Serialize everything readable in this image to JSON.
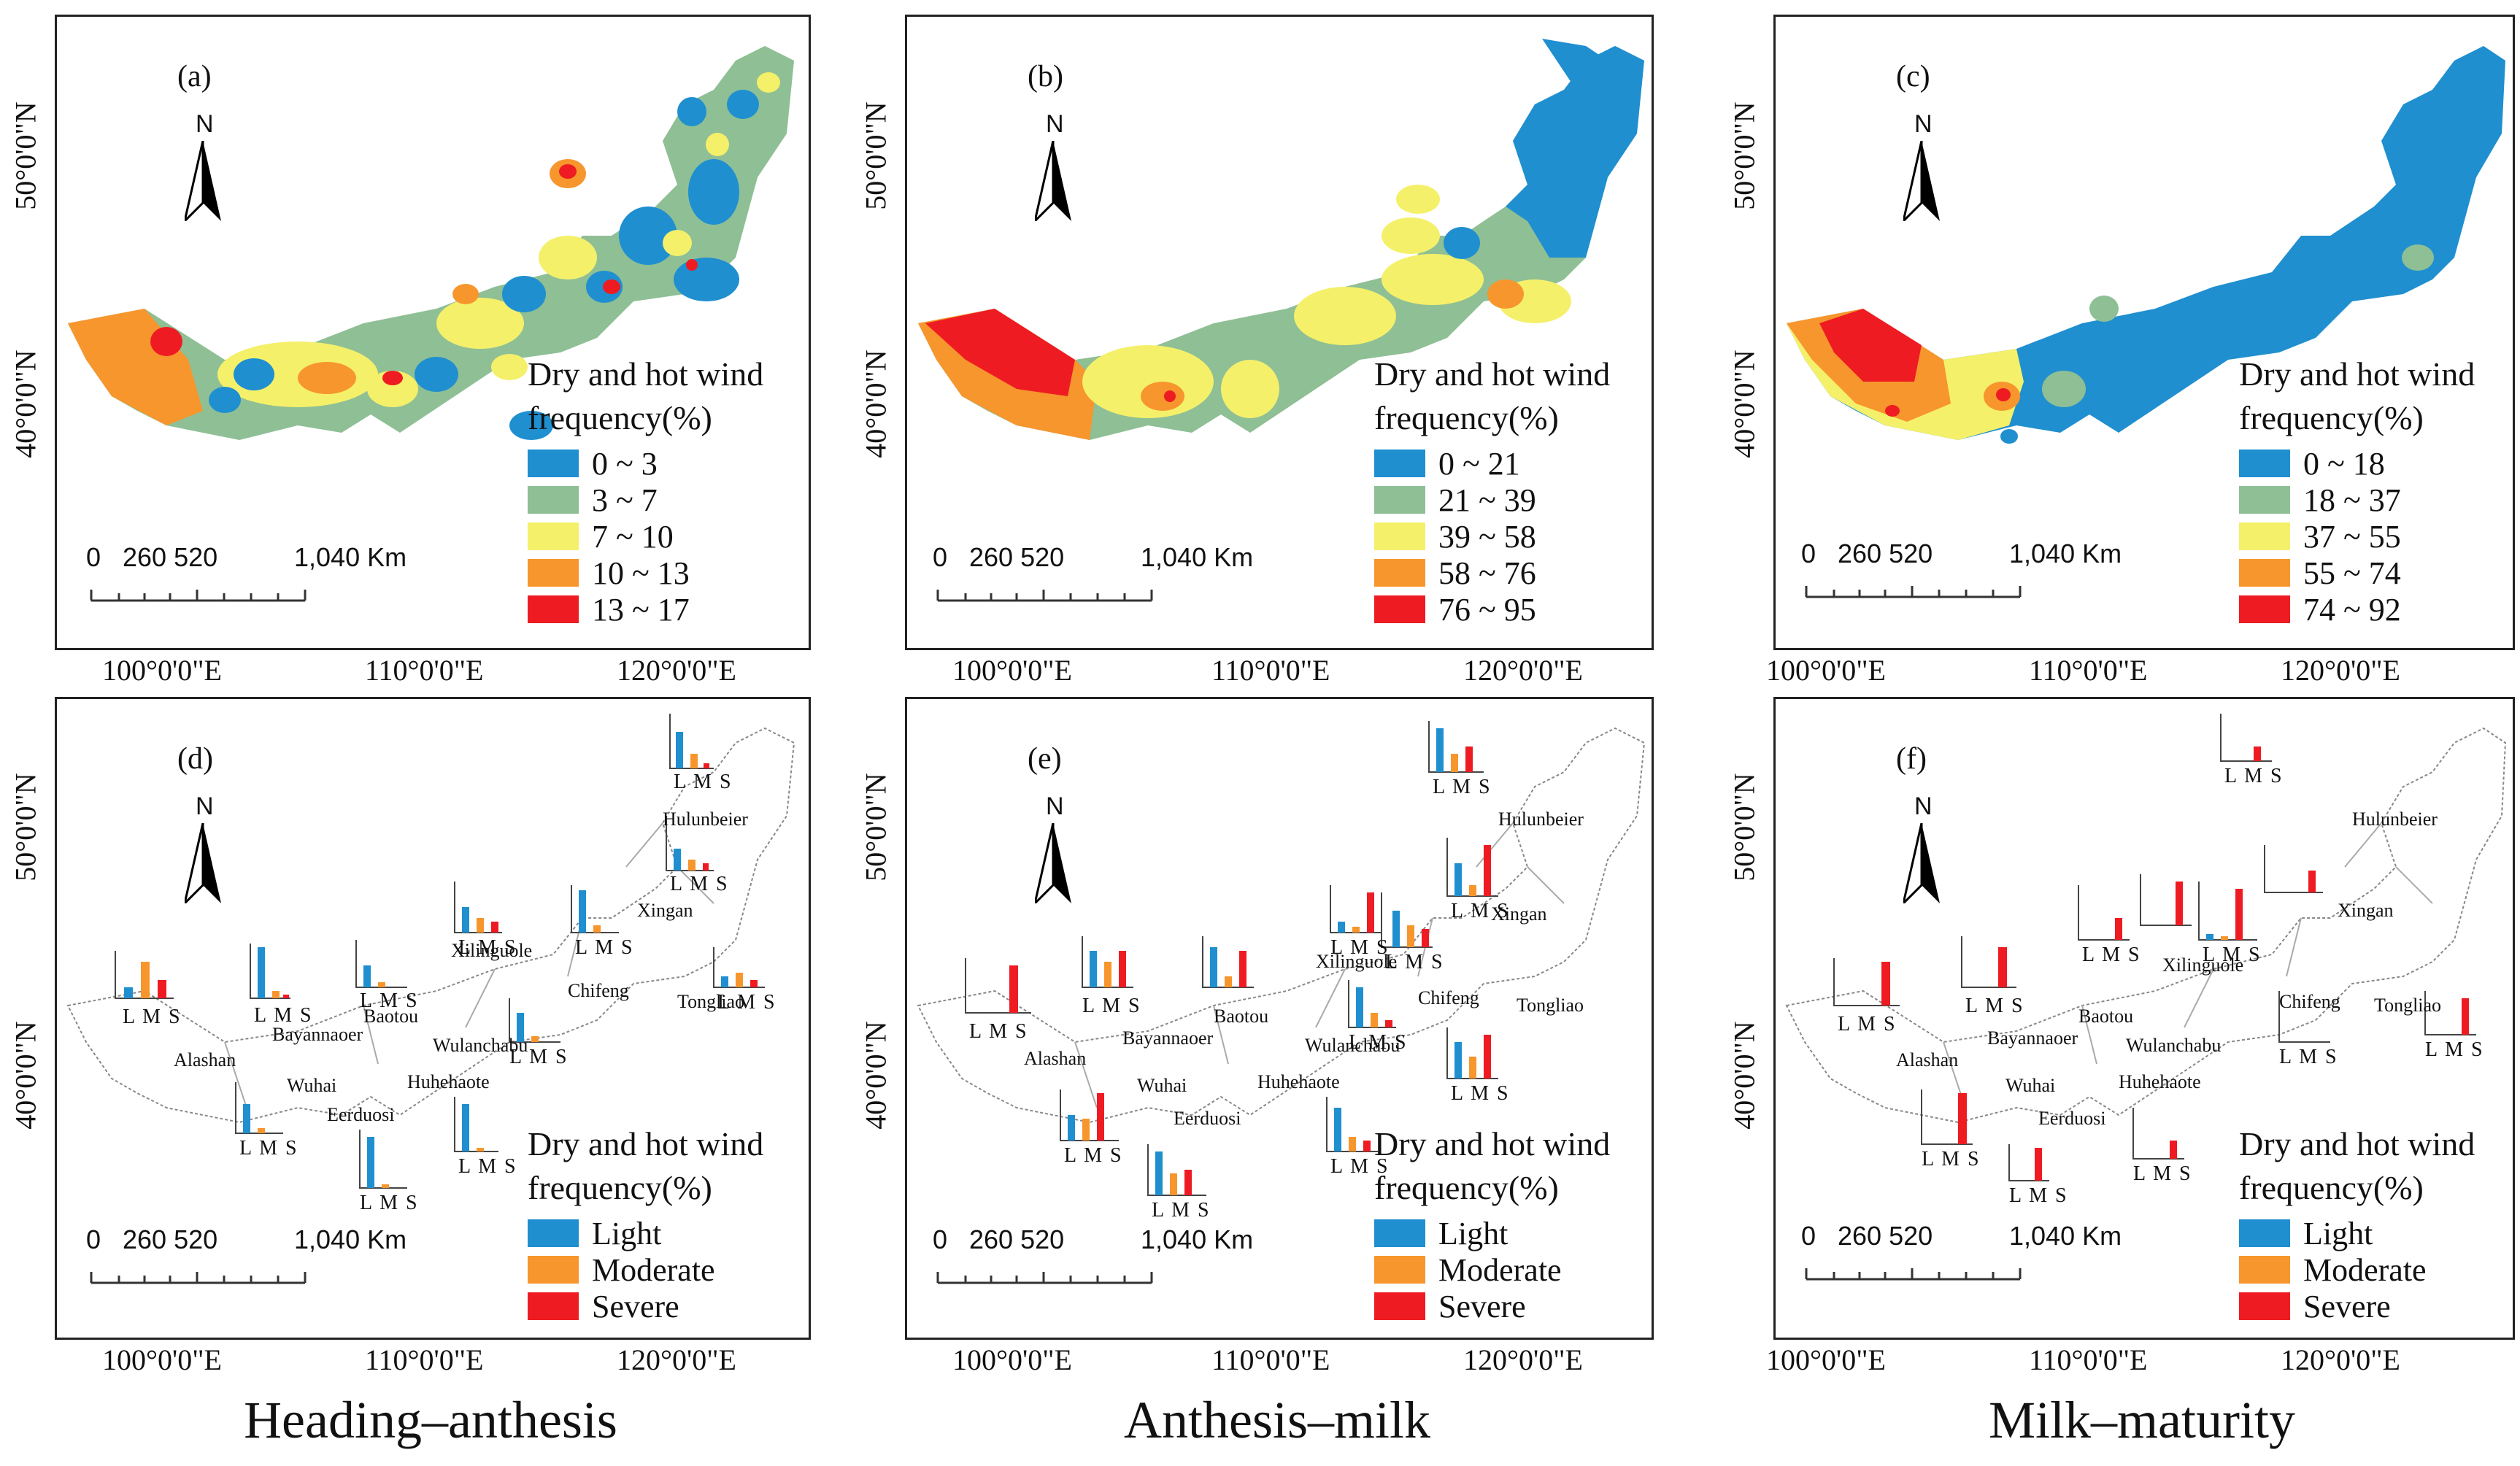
{
  "colors": {
    "c1": "#1f8fd0",
    "c2": "#8fbf95",
    "c3": "#f5f06a",
    "c4": "#f7962d",
    "c5": "#ee1c22",
    "light": "#1f8fd0",
    "moderate": "#f7962d",
    "severe": "#ee1c22"
  },
  "axes": {
    "lon": [
      "100°0'0\"E",
      "110°0'0\"E",
      "120°0'0\"E"
    ],
    "lat": [
      "40°0'0\"N",
      "50°0'0\"N"
    ]
  },
  "north_label": "N",
  "scalebar": {
    "t0": "0",
    "t1": "260 520",
    "t2": "1,040 Km"
  },
  "legend_title_1": "Dry and hot wind",
  "legend_title_2": "frequency(%)",
  "panels": [
    {
      "label": "(a)",
      "classes": [
        "0 ~ 3",
        "3 ~ 7",
        "7 ~ 10",
        "10 ~ 13",
        "13 ~ 17"
      ]
    },
    {
      "label": "(b)",
      "classes": [
        "0 ~ 21",
        "21 ~ 39",
        "39 ~ 58",
        "58 ~ 76",
        "76 ~ 95"
      ]
    },
    {
      "label": "(c)",
      "classes": [
        "0 ~ 18",
        "18 ~ 37",
        "37 ~ 55",
        "55 ~ 74",
        "74 ~ 92"
      ]
    },
    {
      "label": "(d)",
      "classes": [
        "Light",
        "Moderate",
        "Severe"
      ]
    },
    {
      "label": "(e)",
      "classes": [
        "Light",
        "Moderate",
        "Severe"
      ]
    },
    {
      "label": "(f)",
      "classes": [
        "Light",
        "Moderate",
        "Severe"
      ]
    }
  ],
  "cities": {
    "hulunbeier": "Hulunbeier",
    "xingan": "Xingan",
    "xilinguole": "Xilinguole",
    "chifeng": "Chifeng",
    "tongliao": "Tongliao",
    "baotou": "Baotou",
    "bayannaoer": "Bayannaoer",
    "wulanchabu": "Wulanchabu",
    "huhehaote": "Huhehaote",
    "alashan": "Alashan",
    "wuhai": "Wuhai",
    "eerduosi": "Eerduosi"
  },
  "lms": "L M S",
  "stages": [
    "Heading–anthesis",
    "Anthesis–milk",
    "Milk–maturity"
  ]
}
